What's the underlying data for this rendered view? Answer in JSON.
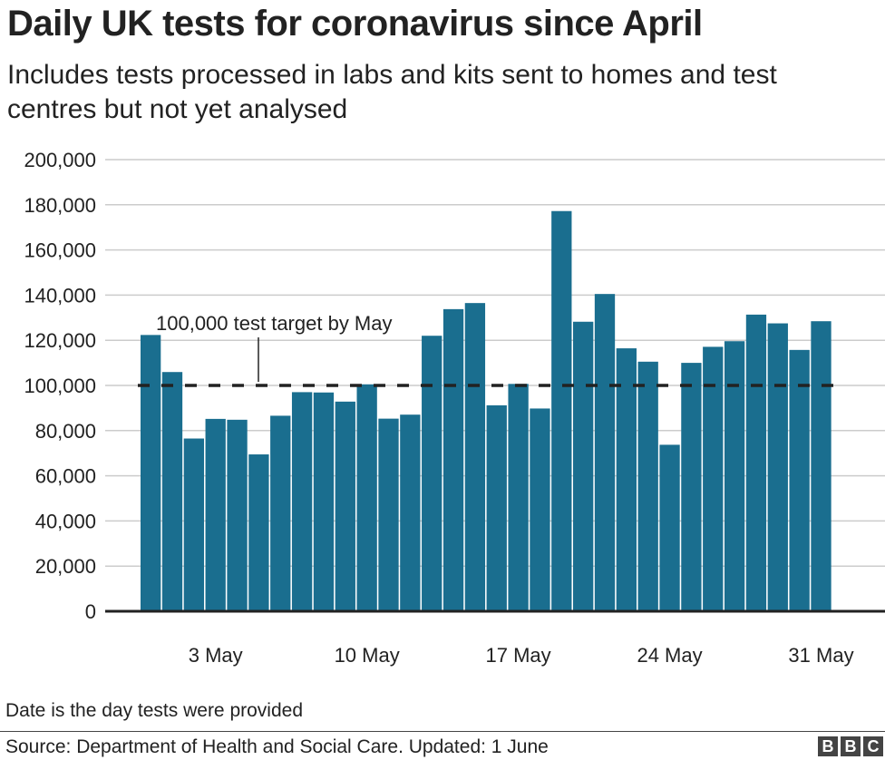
{
  "header": {
    "title": "Daily UK tests for coronavirus since April",
    "subtitle": "Includes tests processed in labs and kits sent to homes and test centres but not yet analysed"
  },
  "footer": {
    "note": "Date is the day tests were provided",
    "source": "Source: Department of Health and Social Care. Updated: 1 June",
    "logo": [
      "B",
      "B",
      "C"
    ]
  },
  "colors": {
    "bar": "#1a6e8f",
    "grid": "#cccccc",
    "axis": "#222222",
    "target": "#222222"
  },
  "chart_data": {
    "type": "bar",
    "title": "Daily UK tests for coronavirus since April",
    "subtitle": "Includes tests processed in labs and kits sent to homes and test centres but not yet analysed",
    "xlabel": "",
    "ylabel": "",
    "ylim": [
      0,
      200000
    ],
    "yticks": [
      0,
      20000,
      40000,
      60000,
      80000,
      100000,
      120000,
      140000,
      160000,
      180000,
      200000
    ],
    "ytick_labels": [
      "0",
      "20,000",
      "40,000",
      "60,000",
      "80,000",
      "100,000",
      "120,000",
      "140,000",
      "160,000",
      "180,000",
      "200,000"
    ],
    "grid": true,
    "categories": [
      "30 Apr",
      "1 May",
      "2 May",
      "3 May",
      "4 May",
      "5 May",
      "6 May",
      "7 May",
      "8 May",
      "9 May",
      "10 May",
      "11 May",
      "12 May",
      "13 May",
      "14 May",
      "15 May",
      "16 May",
      "17 May",
      "18 May",
      "19 May",
      "20 May",
      "21 May",
      "22 May",
      "23 May",
      "24 May",
      "25 May",
      "26 May",
      "27 May",
      "28 May",
      "29 May",
      "30 May",
      "31 May"
    ],
    "xtick_labels": [
      {
        "index": 3,
        "label": "3 May"
      },
      {
        "index": 10,
        "label": "10 May"
      },
      {
        "index": 17,
        "label": "17 May"
      },
      {
        "index": 24,
        "label": "24 May"
      },
      {
        "index": 31,
        "label": "31 May"
      }
    ],
    "values": [
      122347,
      105937,
      76496,
      85186,
      84806,
      69463,
      86583,
      97029,
      96878,
      92837,
      100490,
      85293,
      87063,
      122000,
      133784,
      136486,
      91206,
      100678,
      89784,
      177216,
      128208,
      140497,
      116434,
      110519,
      73726,
      110000,
      117104,
      119587,
      131361,
      127490,
      115725,
      128437
    ],
    "annotations": [
      {
        "type": "hline",
        "y": 100000,
        "style": "dashed",
        "label": "100,000 test target by May"
      }
    ],
    "legend": "none"
  }
}
